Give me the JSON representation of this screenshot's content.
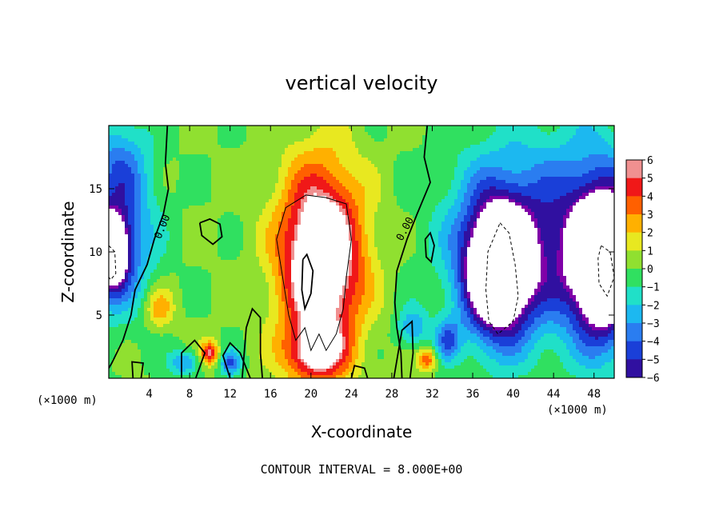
{
  "chart_data": {
    "type": "heatmap",
    "title": "vertical velocity",
    "xlabel": "X-coordinate",
    "ylabel": "Z-coordinate",
    "x_unit_left": "(×1000 m)",
    "x_unit_right": "(×1000 m)",
    "xlim": [
      0,
      50
    ],
    "ylim": [
      0,
      20
    ],
    "x_ticks": [
      "4",
      "8",
      "12",
      "16",
      "20",
      "24",
      "28",
      "32",
      "36",
      "40",
      "44",
      "48"
    ],
    "x_tick_values": [
      4,
      8,
      12,
      16,
      20,
      24,
      28,
      32,
      36,
      40,
      44,
      48
    ],
    "y_ticks": [
      "5",
      "10",
      "15"
    ],
    "y_tick_values": [
      5,
      10,
      15
    ],
    "colorbar": {
      "ticks": [
        "6",
        "5",
        "4",
        "3",
        "2",
        "1",
        "0",
        "−1",
        "−2",
        "−3",
        "−4",
        "−5",
        "−6"
      ],
      "min": -6,
      "max": 6
    },
    "contour_labels": [
      "0.00",
      "0.00"
    ],
    "annotation": "CONTOUR INTERVAL = 8.000E+00",
    "features": [
      {
        "name": "central updraft core",
        "x": 21,
        "z": 9,
        "value": 6,
        "sx": 4.2,
        "sz": 7.5
      },
      {
        "name": "right downdraft core",
        "x": 38.5,
        "z": 8.5,
        "value": -6,
        "sx": 3.2,
        "sz": 6
      },
      {
        "name": "far right downdraft",
        "x": 49,
        "z": 9,
        "value": -6,
        "sx": 3.5,
        "sz": 6
      },
      {
        "name": "left edge downdraft",
        "x": 0.5,
        "z": 10,
        "value": -6,
        "sx": 1.5,
        "sz": 3
      }
    ],
    "colors": {
      "white": "#ffffff",
      "scale": [
        "#7f00a8",
        "#3010a0",
        "#1a3fd8",
        "#2a7df0",
        "#1cb8f0",
        "#20e0c8",
        "#30e060",
        "#90e030",
        "#e8e820",
        "#ffb000",
        "#ff6000",
        "#f01818",
        "#f09090"
      ]
    }
  }
}
